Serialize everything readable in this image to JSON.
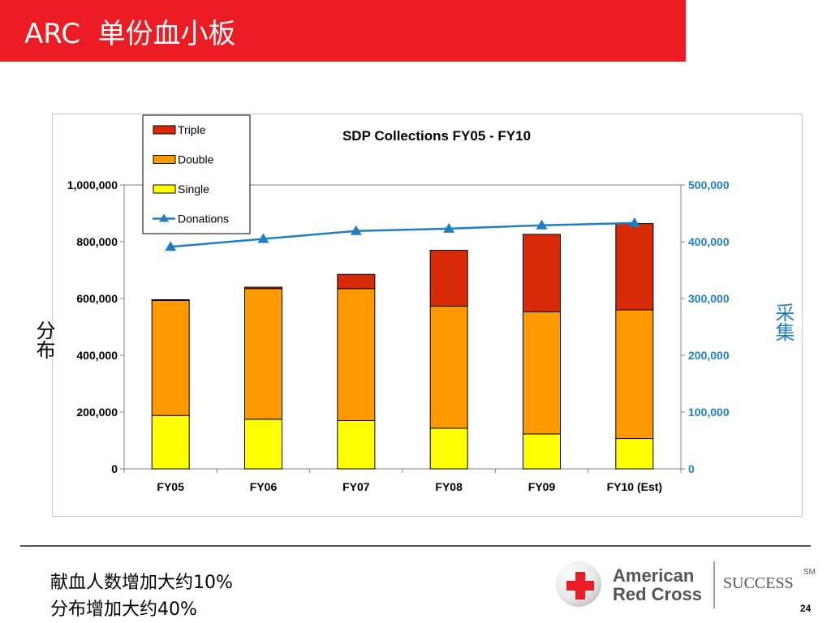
{
  "slide": {
    "title": "ARC  单份血小板",
    "left_label": "分布",
    "right_label": "采集",
    "bottom_line_1": "献血人数增加大约10%",
    "bottom_line_2": "分布增加大约40%",
    "page_number": "24"
  },
  "logo": {
    "line1": "American",
    "line2": "Red Cross",
    "tagline": "SUCCESS",
    "mark": "SM"
  },
  "colors": {
    "title_bar": "#ec1c24",
    "triple": "#d92a08",
    "double": "#ff9900",
    "single": "#ffff00",
    "donations": "#1f7fc1",
    "right_axis": "#1f7fc1"
  },
  "chart_data": {
    "type": "bar",
    "stacked": true,
    "title": "SDP Collections  FY05 - FY10",
    "categories": [
      "FY05",
      "FY06",
      "FY07",
      "FY08",
      "FY09",
      "FY10 (Est)"
    ],
    "series": [
      {
        "name": "Single",
        "axis": "left",
        "values": [
          188000,
          175000,
          170000,
          143000,
          123000,
          107000
        ]
      },
      {
        "name": "Double",
        "axis": "left",
        "values": [
          405000,
          460000,
          465000,
          430000,
          430000,
          453000
        ]
      },
      {
        "name": "Triple",
        "axis": "left",
        "values": [
          3000,
          5000,
          50000,
          197000,
          273000,
          304000
        ]
      }
    ],
    "line_series": {
      "name": "Donations",
      "axis": "right",
      "values": [
        391000,
        405000,
        419000,
        423000,
        429000,
        433000
      ]
    },
    "left_axis": {
      "ylim": [
        0,
        1000000
      ],
      "ticks": [
        "0",
        "200,000",
        "400,000",
        "600,000",
        "800,000",
        "1,000,000"
      ]
    },
    "right_axis": {
      "ylim": [
        0,
        500000
      ],
      "ticks": [
        "0",
        "100,000",
        "200,000",
        "300,000",
        "400,000",
        "500,000"
      ]
    },
    "legend": [
      "Triple",
      "Double",
      "Single",
      "Donations"
    ],
    "legend_position": "top-left",
    "grid": false
  }
}
